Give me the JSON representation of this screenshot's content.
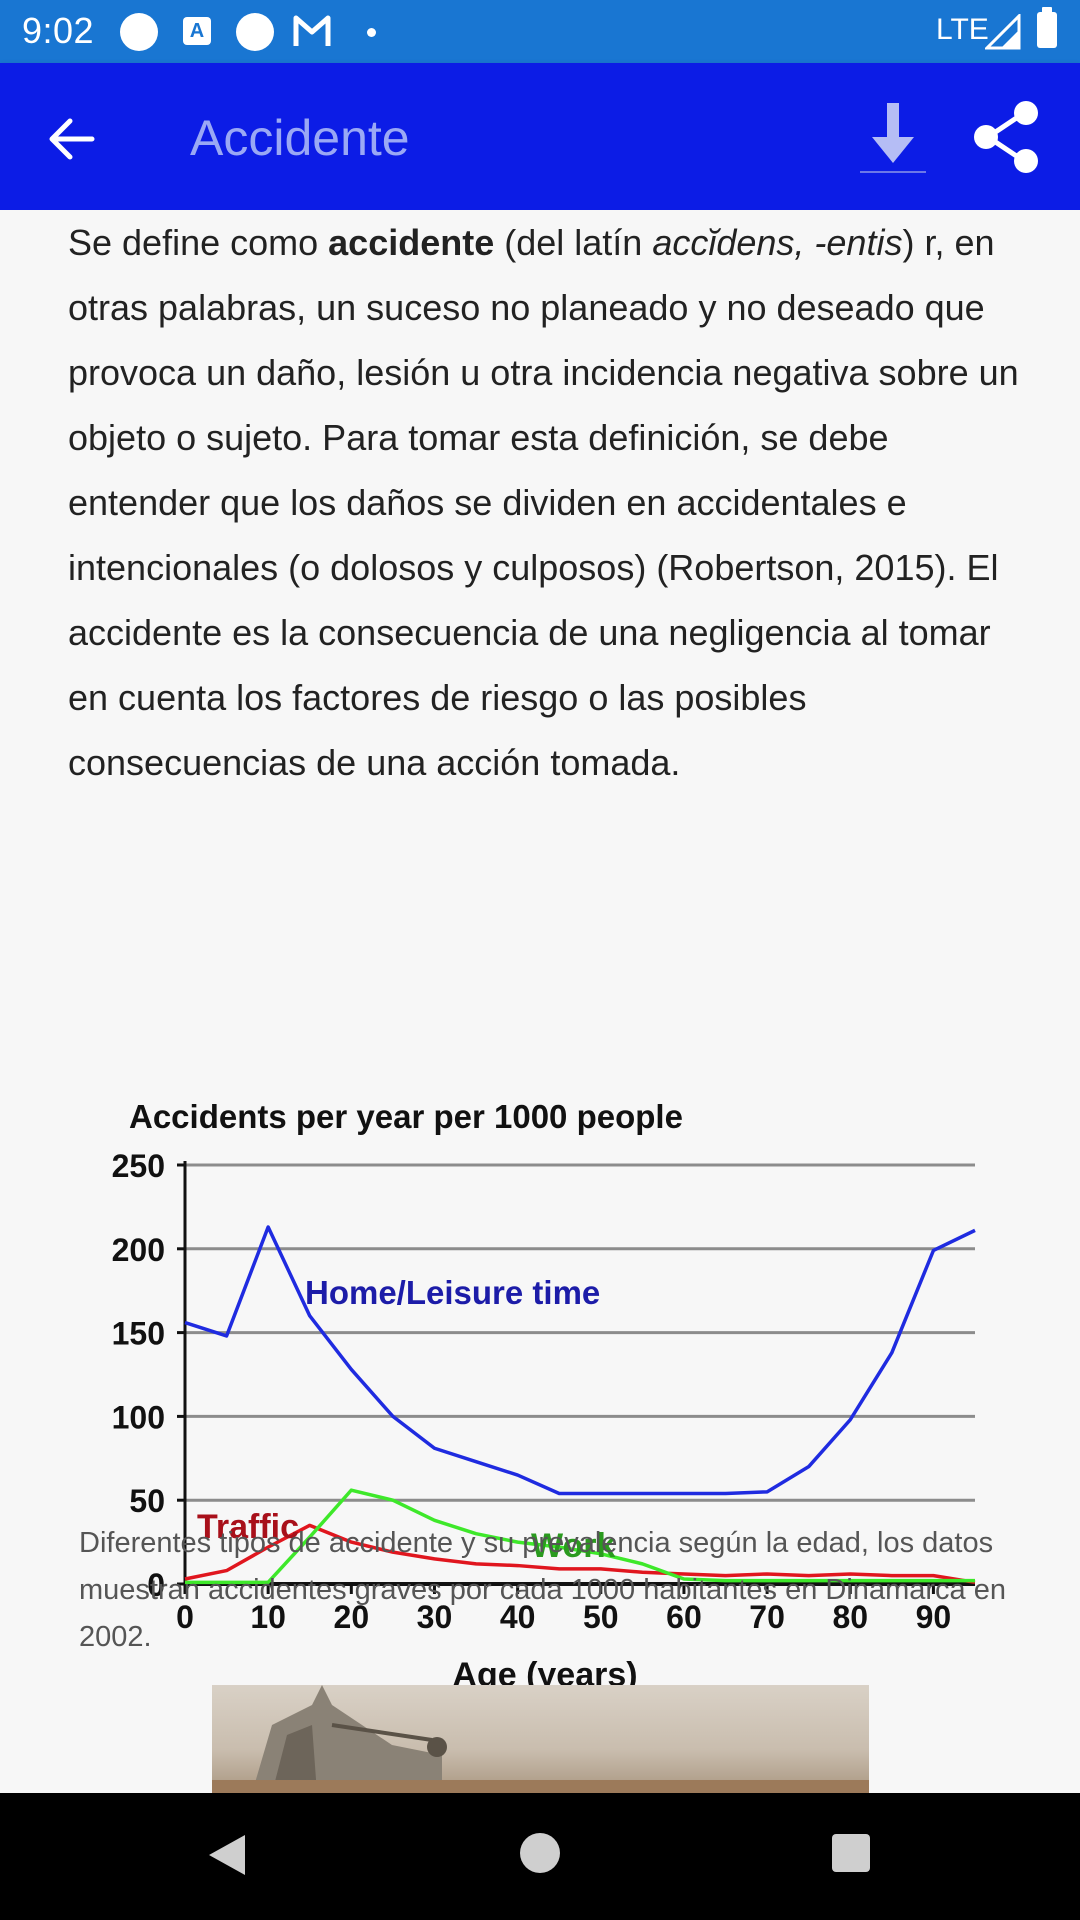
{
  "status_bar": {
    "time": "9:02",
    "network": "LTE"
  },
  "app_bar": {
    "title": "Accidente"
  },
  "article": {
    "p_before_bold": "Se define como ",
    "p_bold": "accidente",
    "p_after_bold": " (del latín ",
    "p_italic": "accĭdens, -entis",
    "p_rest": ") r, en otras palabras, un suceso no planeado y no deseado que provoca un daño, lesión u otra incidencia negativa sobre un objeto o sujeto. Para tomar esta definición, se debe entender que los daños se dividen en accidentales e intencionales (o dolosos y culposos) (Robertson, 2015). El accidente es la consecuencia de una negligencia al tomar en cuenta los factores de riesgo o las posibles consecuencias de una acción tomada.",
    "caption": "Diferentes tipos de accidente y su prevalencia según la edad, los datos muestran accidentes graves por cada 1000 habitantes en Dinamarca en 2002."
  },
  "colors": {
    "status_bar": "#1976d2",
    "app_bar": "#0c1ce6",
    "title_text": "#9aa8f5",
    "home": "#1f2be0",
    "traffic": "#e0161e",
    "work": "#3ee82a"
  },
  "chart_data": {
    "type": "line",
    "title": "Accidents per year per 1000 people",
    "xlabel": "Age (years)",
    "ylabel": "",
    "xlim": [
      0,
      95
    ],
    "ylim": [
      0,
      250
    ],
    "x_ticks": [
      0,
      10,
      20,
      30,
      40,
      50,
      60,
      70,
      80,
      90
    ],
    "y_ticks": [
      0,
      50,
      100,
      150,
      200,
      250
    ],
    "grid": "horizontal",
    "series": [
      {
        "name": "Home/Leisure time",
        "color": "#1f2be0",
        "x": [
          0,
          5,
          10,
          15,
          20,
          25,
          30,
          35,
          40,
          45,
          50,
          55,
          60,
          65,
          70,
          75,
          80,
          85,
          90,
          95
        ],
        "y": [
          156,
          148,
          213,
          160,
          128,
          100,
          81,
          73,
          65,
          54,
          54,
          54,
          54,
          54,
          55,
          70,
          98,
          138,
          199,
          211
        ]
      },
      {
        "name": "Traffic",
        "color": "#c0131a",
        "x": [
          0,
          5,
          10,
          15,
          20,
          25,
          30,
          35,
          40,
          45,
          50,
          55,
          60,
          65,
          70,
          75,
          80,
          85,
          90,
          95
        ],
        "y": [
          3,
          8,
          22,
          35,
          25,
          19,
          15,
          12,
          11,
          9,
          9,
          7,
          6,
          5,
          6,
          5,
          6,
          5,
          5,
          1
        ]
      },
      {
        "name": "Work",
        "color": "#2a9a1e",
        "x": [
          0,
          5,
          10,
          15,
          20,
          25,
          30,
          35,
          40,
          45,
          50,
          55,
          60,
          65,
          70,
          75,
          80,
          85,
          90,
          95
        ],
        "y": [
          1,
          1,
          1,
          28,
          56,
          50,
          38,
          30,
          25,
          22,
          18,
          12,
          3,
          2,
          2,
          2,
          2,
          2,
          2,
          2
        ]
      }
    ],
    "annotations": [
      "Home/Leisure time",
      "Traffic",
      "Work"
    ]
  }
}
